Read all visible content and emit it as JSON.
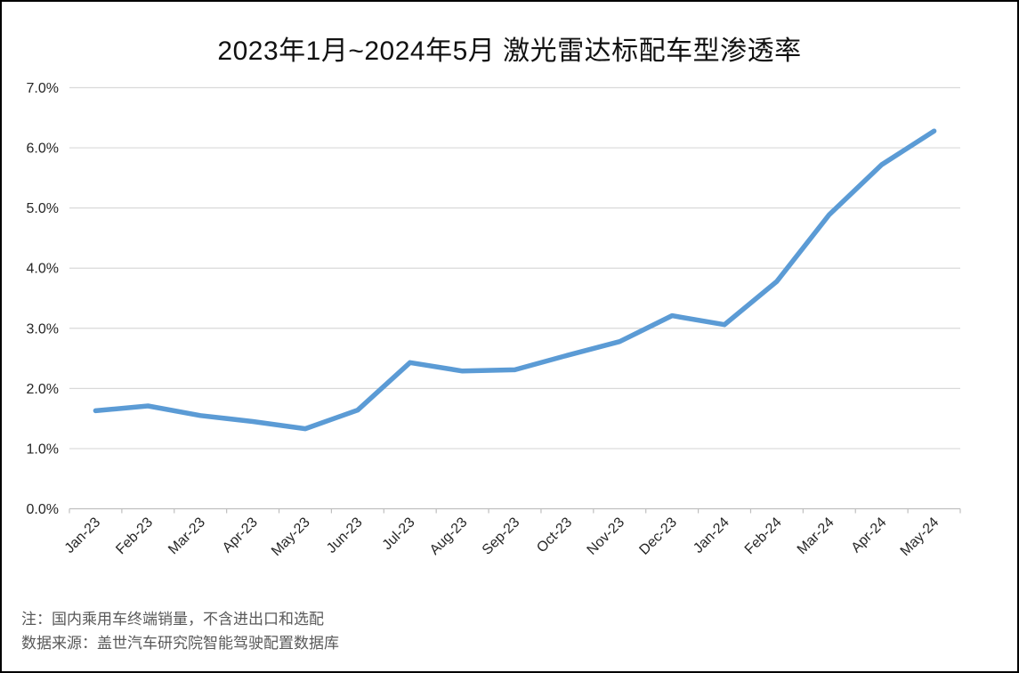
{
  "chart_data": {
    "type": "line",
    "title": "2023年1月~2024年5月 激光雷达标配车型渗透率",
    "categories": [
      "Jan-23",
      "Feb-23",
      "Mar-23",
      "Apr-23",
      "May-23",
      "Jun-23",
      "Jul-23",
      "Aug-23",
      "Sep-23",
      "Oct-23",
      "Nov-23",
      "Dec-23",
      "Jan-24",
      "Feb-24",
      "Mar-24",
      "Apr-24",
      "May-24"
    ],
    "values": [
      1.63,
      1.71,
      1.55,
      1.45,
      1.33,
      1.64,
      2.43,
      2.29,
      2.31,
      2.55,
      2.78,
      3.21,
      3.06,
      3.78,
      4.89,
      5.72,
      6.28
    ],
    "unit": "%",
    "xlabel": "",
    "ylabel": "",
    "ylim": [
      0,
      7
    ],
    "ytick_labels": [
      "0.0%",
      "1.0%",
      "2.0%",
      "3.0%",
      "4.0%",
      "5.0%",
      "6.0%",
      "7.0%"
    ],
    "grid": true,
    "legend_position": "none",
    "colors": {
      "line": "#5B9BD5",
      "grid": "#D9D9D9",
      "axis": "#BFBFBF",
      "text": "#262626"
    }
  },
  "notes": {
    "line1": "注：国内乘用车终端销量，不含进出口和选配",
    "line2": "数据来源：盖世汽车研究院智能驾驶配置数据库"
  }
}
